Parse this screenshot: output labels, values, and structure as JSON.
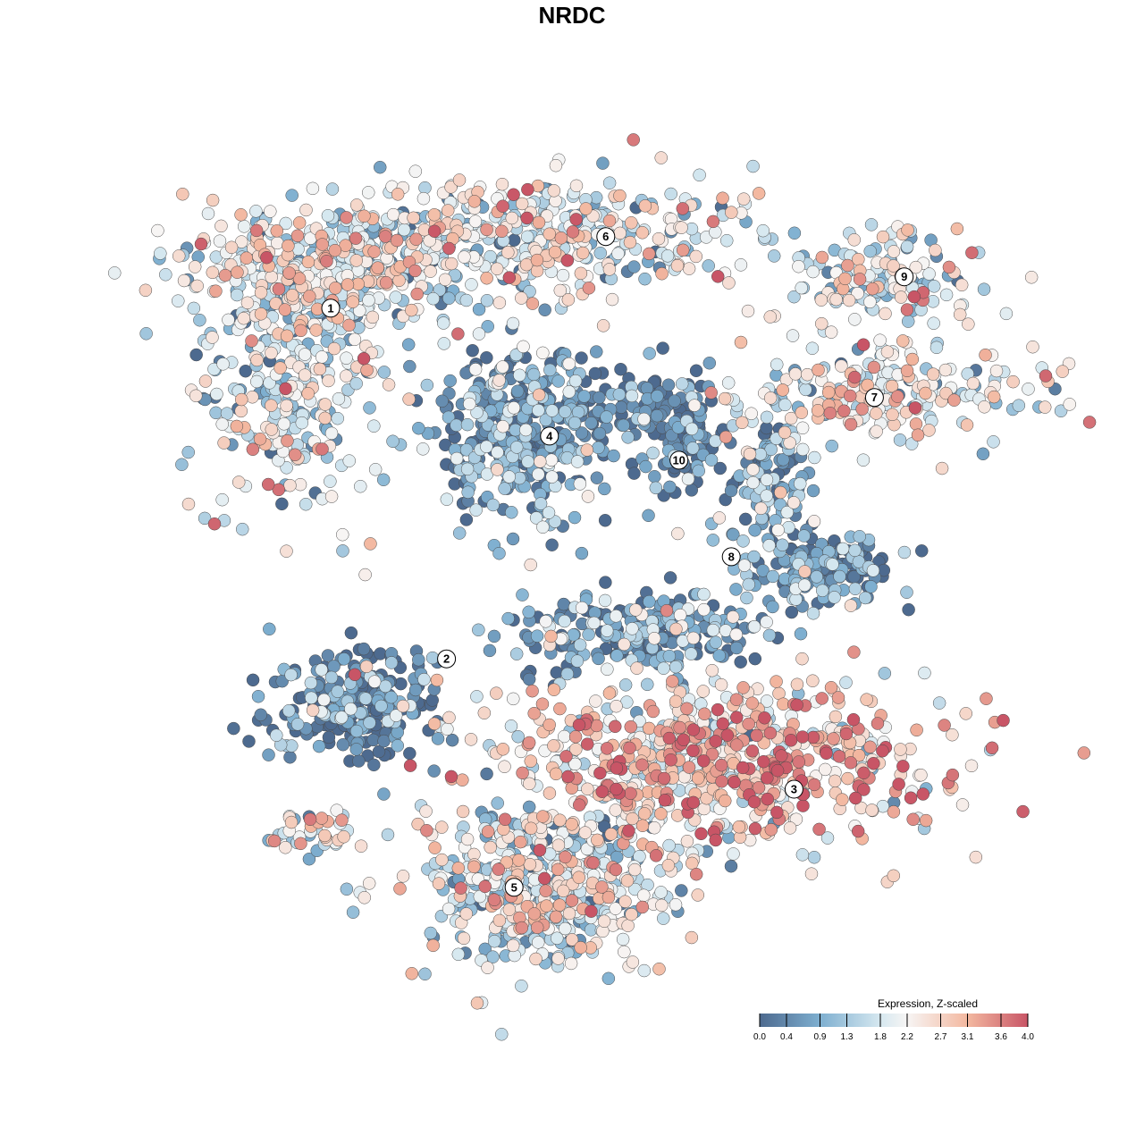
{
  "chart_data": {
    "type": "scatter",
    "title": "NRDC",
    "xlabel": "",
    "ylabel": "",
    "grid": false,
    "axes_visible": false,
    "color_scale": {
      "title": "Expression, Z-scaled",
      "ticks": [
        "0.0",
        "0.4",
        "0.9",
        "1.3",
        "1.8",
        "2.2",
        "2.7",
        "3.1",
        "3.6",
        "4.0"
      ],
      "range": [
        0,
        4
      ],
      "stops": [
        {
          "value": 0.0,
          "color": "#4d6a8f"
        },
        {
          "value": 0.9,
          "color": "#7eafd0"
        },
        {
          "value": 1.8,
          "color": "#d6e8f0"
        },
        {
          "value": 2.2,
          "color": "#f7f5f4"
        },
        {
          "value": 3.1,
          "color": "#f3b8a0"
        },
        {
          "value": 4.0,
          "color": "#c85566"
        }
      ],
      "placement": "bottom-right"
    },
    "clusters": [
      {
        "label": "1",
        "x": -30.0,
        "y": 32.8
      },
      {
        "label": "6",
        "x": 4.2,
        "y": 41.7
      },
      {
        "label": "4",
        "x": -2.8,
        "y": 16.9
      },
      {
        "label": "10",
        "x": 13.3,
        "y": 13.9
      },
      {
        "label": "9",
        "x": 41.3,
        "y": 36.7
      },
      {
        "label": "7",
        "x": 37.6,
        "y": 21.7
      },
      {
        "label": "8",
        "x": 19.8,
        "y": 1.9
      },
      {
        "label": "2",
        "x": -15.6,
        "y": -10.8
      },
      {
        "label": "3",
        "x": 27.6,
        "y": -27.0
      },
      {
        "label": "5",
        "x": -7.2,
        "y": -39.2
      }
    ],
    "point_groups": [
      {
        "cluster": "1",
        "cx": -31.1,
        "cy": 37.8,
        "sx": 12.5,
        "sy": 5.2,
        "n": 350,
        "mean_expr": 2.0
      },
      {
        "cluster": "1",
        "cx": -34.4,
        "cy": 23.3,
        "sx": 8.5,
        "sy": 10.5,
        "n": 300,
        "mean_expr": 1.8
      },
      {
        "cluster": "6",
        "cx": -4.4,
        "cy": 42.2,
        "sx": 19.0,
        "sy": 4.8,
        "n": 400,
        "mean_expr": 1.9
      },
      {
        "cluster": "4",
        "cx": -5.6,
        "cy": 17.2,
        "sx": 7.0,
        "sy": 7.5,
        "n": 380,
        "mean_expr": 0.7
      },
      {
        "cluster": "4",
        "cx": 8.9,
        "cy": 21.1,
        "sx": 6.0,
        "sy": 2.5,
        "n": 80,
        "mean_expr": 0.2
      },
      {
        "cluster": "10",
        "cx": 13.9,
        "cy": 15.6,
        "sx": 3.0,
        "sy": 4.5,
        "n": 80,
        "mean_expr": 0.3
      },
      {
        "cluster": "9",
        "cx": 37.8,
        "cy": 36.1,
        "sx": 8.5,
        "sy": 4.0,
        "n": 150,
        "mean_expr": 2.0
      },
      {
        "cluster": "7",
        "cx": 37.8,
        "cy": 22.2,
        "sx": 12.5,
        "sy": 4.0,
        "n": 220,
        "mean_expr": 2.1
      },
      {
        "cluster": "8",
        "cx": 24.4,
        "cy": 11.1,
        "sx": 3.5,
        "sy": 6.0,
        "n": 120,
        "mean_expr": 0.8
      },
      {
        "cluster": "8",
        "cx": 31.1,
        "cy": 0.0,
        "sx": 5.5,
        "sy": 3.0,
        "n": 160,
        "mean_expr": 0.5
      },
      {
        "cluster": "2",
        "cx": -26.7,
        "cy": -16.7,
        "sx": 6.5,
        "sy": 4.5,
        "n": 250,
        "mean_expr": 0.4
      },
      {
        "cluster": "2",
        "cx": 8.9,
        "cy": -7.8,
        "sx": 11.0,
        "sy": 3.2,
        "n": 250,
        "mean_expr": 0.6
      },
      {
        "cluster": "3",
        "cx": 17.8,
        "cy": -23.3,
        "sx": 18.5,
        "sy": 6.5,
        "n": 700,
        "mean_expr": 2.7
      },
      {
        "cluster": "5",
        "cx": -3.3,
        "cy": -38.9,
        "sx": 10.5,
        "sy": 7.0,
        "n": 500,
        "mean_expr": 1.8
      },
      {
        "cluster": "5",
        "cx": -31.1,
        "cy": -32.2,
        "sx": 4.5,
        "sy": 2.2,
        "n": 40,
        "mean_expr": 2.2
      }
    ]
  }
}
